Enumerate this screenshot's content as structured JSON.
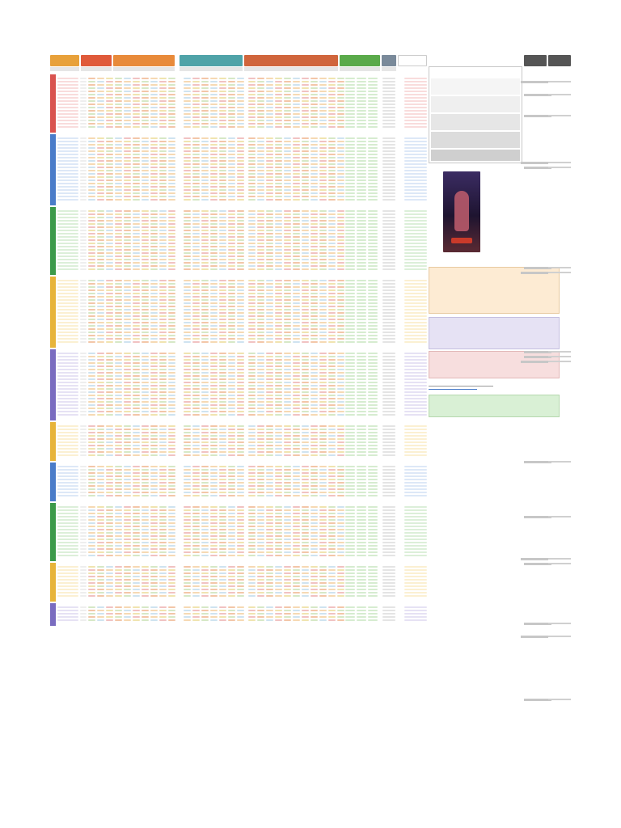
{
  "sheet": {
    "header_groups": [
      {
        "label": "",
        "color": "#e8a13a"
      },
      {
        "label": "",
        "color": "#e05a3a"
      },
      {
        "label": "",
        "color": "#e88a3a"
      },
      {
        "label": "",
        "color": "#4fa3a8"
      },
      {
        "label": "",
        "color": "#d0653c"
      },
      {
        "label": "",
        "color": "#5aaa4a"
      },
      {
        "label": "",
        "color": "#7a8a9a"
      },
      {
        "label": "",
        "color": "#ffffff"
      },
      {
        "label": "",
        "color": "#555555"
      },
      {
        "label": "",
        "color": "#555555"
      }
    ],
    "affinity_blocks": [
      {
        "name": "",
        "color": "#d9534f",
        "tint": "#f9dcdc",
        "rows": 16
      },
      {
        "name": "",
        "color": "#4a7cc9",
        "tint": "#dde8f7",
        "rows": 20
      },
      {
        "name": "",
        "color": "#3c9a4a",
        "tint": "#dcefd9",
        "rows": 19
      },
      {
        "name": "",
        "color": "#e7b43a",
        "tint": "#fbf0d2",
        "rows": 20
      },
      {
        "name": "",
        "color": "#7a6cc0",
        "tint": "#e6e2f4",
        "rows": 20
      },
      {
        "name": "",
        "color": "#e7b43a",
        "tint": "#fbf0d2",
        "rows": 10
      },
      {
        "name": "",
        "color": "#4a7cc9",
        "tint": "#dde8f7",
        "rows": 10
      },
      {
        "name": "",
        "color": "#3c9a4a",
        "tint": "#dcefd9",
        "rows": 16
      },
      {
        "name": "",
        "color": "#e7b43a",
        "tint": "#fbf0d2",
        "rows": 10
      },
      {
        "name": "",
        "color": "#7a6cc0",
        "tint": "#e6e2f4",
        "rows": 5
      }
    ],
    "ranking_scale_title": "",
    "ranking_criteria_title": "",
    "weekly_tournament_title": "",
    "ad": {
      "title": "",
      "play_button": ""
    }
  }
}
